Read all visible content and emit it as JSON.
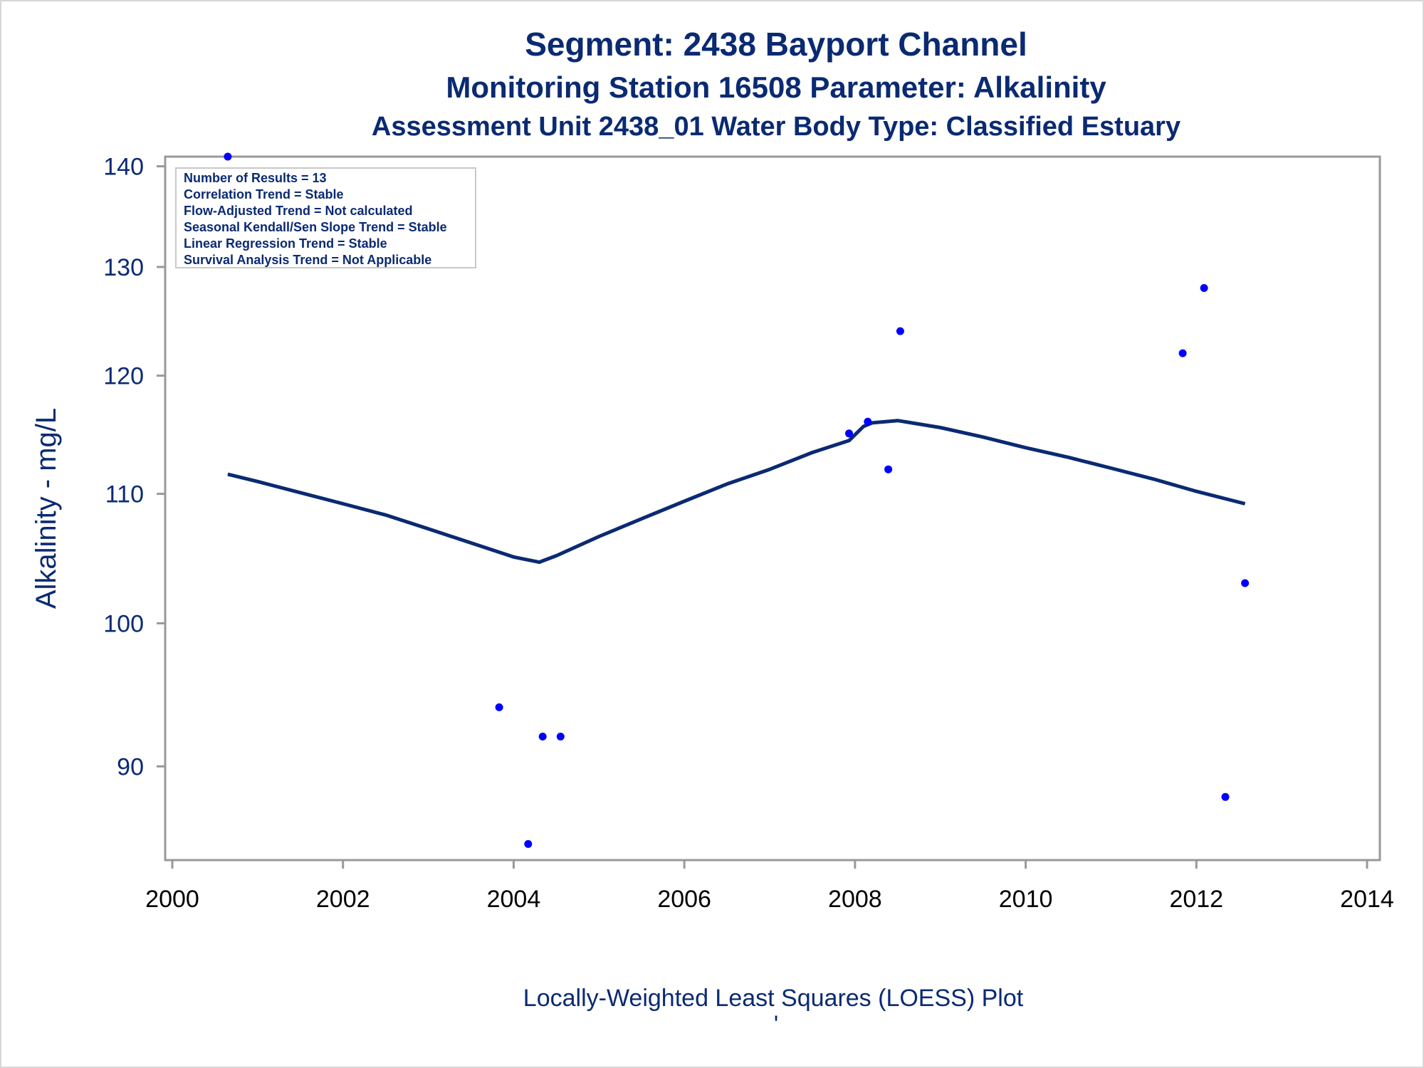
{
  "colors": {
    "text": "#0a2a72",
    "tick_text_x": "#000000",
    "axis_frame": "#999999",
    "loess_line": "#0a2a72",
    "points": "#0000ff",
    "legend_border": "#c9c9c9"
  },
  "titles": {
    "line1": "Segment: 2438  Bayport Channel",
    "line2": "Monitoring Station 16508 Parameter: Alkalinity",
    "line3": "Assessment Unit 2438_01   Water Body Type: Classified Estuary"
  },
  "stats_box": {
    "lines": [
      "Number of Results = 13",
      "Correlation Trend = Stable",
      "Flow-Adjusted Trend = Not calculated",
      "Seasonal Kendall/Sen Slope Trend = Stable",
      "Linear Regression Trend = Stable",
      "Survival Analysis Trend = Not Applicable"
    ]
  },
  "footnote": {
    "text": "Locally-Weighted Least Squares (LOESS) Plot",
    "mark": "'"
  },
  "chart_data": {
    "type": "scatter",
    "title": "Segment: 2438  Bayport Channel",
    "subtitle": "Monitoring Station 16508 Parameter: Alkalinity",
    "xlabel": "",
    "ylabel": "Alkalinity - mg/L",
    "xlim": [
      2000,
      2014
    ],
    "ylim": [
      84,
      141
    ],
    "y_scale": "log",
    "x_ticks": [
      2000,
      2002,
      2004,
      2006,
      2008,
      2010,
      2012,
      2014
    ],
    "y_ticks": [
      90,
      100,
      110,
      120,
      130,
      140
    ],
    "grid": false,
    "legend": "none",
    "series": [
      {
        "type": "scatter",
        "x": [
          2000.65,
          2003.83,
          2004.17,
          2004.34,
          2004.55,
          2007.93,
          2008.15,
          2008.39,
          2008.53,
          2011.84,
          2012.09,
          2012.34,
          2012.57
        ],
        "y": [
          141,
          94,
          85,
          92,
          92,
          115,
          116,
          112,
          124,
          122,
          128,
          88,
          103
        ]
      },
      {
        "type": "line",
        "x": [
          2000.65,
          2001,
          2001.5,
          2002,
          2002.5,
          2003,
          2003.5,
          2004,
          2004.3,
          2004.5,
          2005,
          2005.5,
          2006,
          2006.5,
          2007,
          2007.5,
          2007.93,
          2008.1,
          2008.2,
          2008.5,
          2009,
          2009.5,
          2010,
          2010.5,
          2011,
          2011.5,
          2012,
          2012.57
        ],
        "y": [
          111.6,
          111,
          110.1,
          109.2,
          108.3,
          107.2,
          106.1,
          105.0,
          104.6,
          105.1,
          106.6,
          108.0,
          109.4,
          110.8,
          112.0,
          113.4,
          114.4,
          115.6,
          115.9,
          116.1,
          115.5,
          114.7,
          113.8,
          113.0,
          112.1,
          111.2,
          110.2,
          109.2
        ]
      }
    ]
  }
}
